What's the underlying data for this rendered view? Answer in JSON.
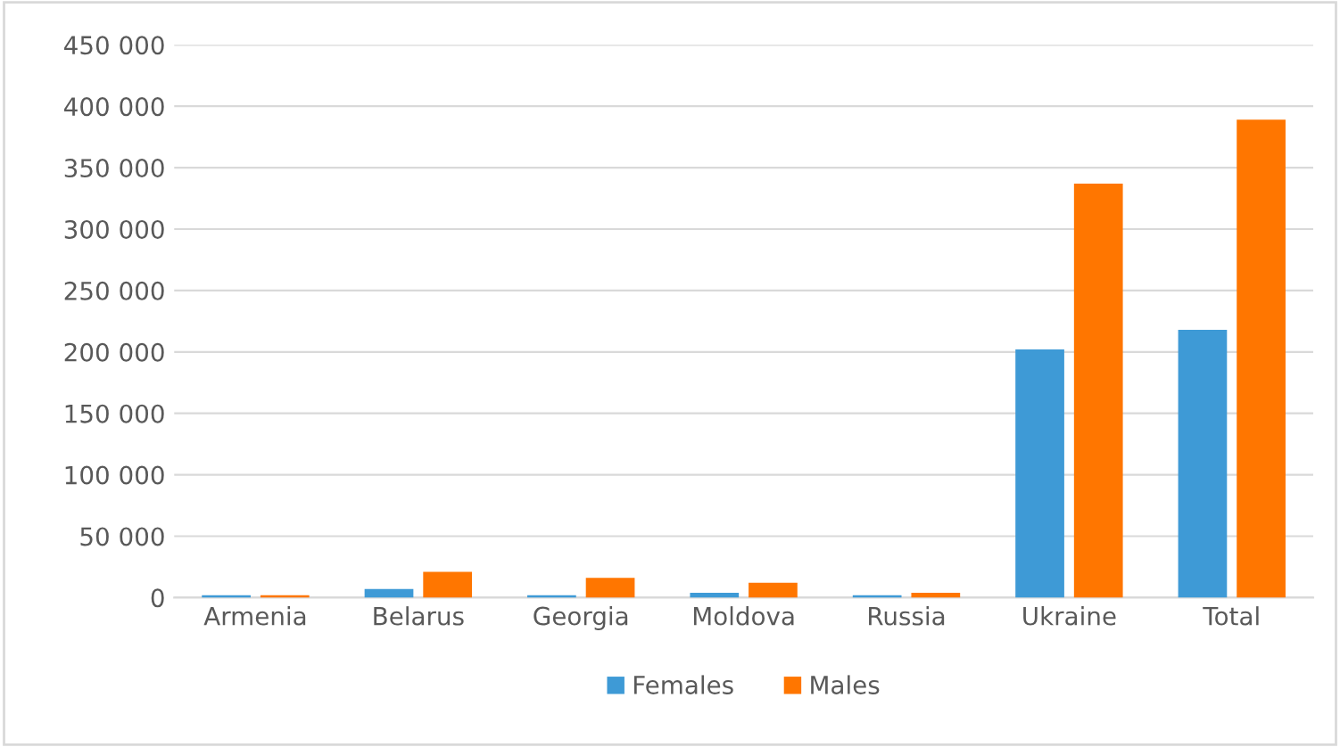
{
  "chart_data": {
    "type": "bar",
    "categories": [
      "Armenia",
      "Belarus",
      "Georgia",
      "Moldova",
      "Russia",
      "Ukraine",
      "Total"
    ],
    "series": [
      {
        "name": "Females",
        "color": "#3e9ad6",
        "values": [
          2000,
          7000,
          2000,
          4000,
          2000,
          202000,
          218000
        ]
      },
      {
        "name": "Males",
        "color": "#ff7600",
        "values": [
          2000,
          21000,
          16000,
          12000,
          4000,
          337000,
          389000
        ]
      }
    ],
    "ylim": [
      0,
      450000
    ],
    "yticks": [
      {
        "value": 0,
        "label": "0"
      },
      {
        "value": 50000,
        "label": "50 000"
      },
      {
        "value": 100000,
        "label": "100 000"
      },
      {
        "value": 150000,
        "label": "150 000"
      },
      {
        "value": 200000,
        "label": "200 000"
      },
      {
        "value": 250000,
        "label": "250 000"
      },
      {
        "value": 300000,
        "label": "300 000"
      },
      {
        "value": 350000,
        "label": "350 000"
      },
      {
        "value": 400000,
        "label": "400 000"
      },
      {
        "value": 450000,
        "label": "450 000"
      }
    ],
    "grid": "y",
    "legend": "bottom"
  }
}
